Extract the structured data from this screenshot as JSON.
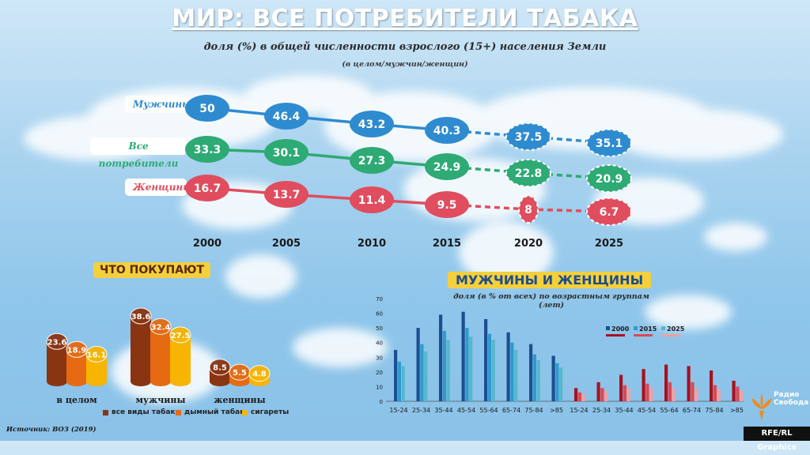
{
  "header": {
    "title": "МИР: ВСЕ ПОТРЕБИТЕЛИ ТАБАКА",
    "subtitle": "доля (%) в общей численности взрослого (15+) населения Земли",
    "note": "(в целом/мужчин/женщин)"
  },
  "colors": {
    "men": "#2e8bd0",
    "all": "#2eaa74",
    "women": "#e04d5e",
    "all_types": "#8a3512",
    "smoked": "#e56a12",
    "cigarettes": "#f7b400",
    "y2000": "#1b4f8f",
    "y2015": "#2e9ad0",
    "y2025": "#58b7c8",
    "w2000": "#a5121f",
    "w2015": "#d84a52",
    "w2025": "#f2a0a4"
  },
  "chart_data": [
    {
      "type": "line",
      "title": "доля (%) в общей численности взрослого (15+) населения Земли",
      "x": [
        "2000",
        "2005",
        "2010",
        "2015",
        "2020",
        "2025"
      ],
      "projected_from_index": 4,
      "series": [
        {
          "name": "Мужчины",
          "values": [
            50,
            46.4,
            43.2,
            40.3,
            37.5,
            35.1
          ],
          "labels": [
            "50",
            "46.4",
            "43.2",
            "40.3",
            "37.5",
            "35.1"
          ]
        },
        {
          "name": "Все потребители",
          "values": [
            33.3,
            30.1,
            27.3,
            24.9,
            22.8,
            20.9
          ],
          "labels": [
            "33.3",
            "30.1",
            "27.3",
            "24.9",
            "22.8",
            "20.9"
          ]
        },
        {
          "name": "Женщины",
          "values": [
            16.7,
            13.7,
            11.4,
            9.5,
            8,
            6.7
          ],
          "labels": [
            "16.7",
            "13.7",
            "11.4",
            "9.5",
            "8",
            "6.7"
          ]
        }
      ]
    },
    {
      "type": "bar",
      "title": "ЧТО ПОКУПАЮТ",
      "categories": [
        "в целом",
        "мужчины",
        "женщины"
      ],
      "series": [
        {
          "name": "все виды табака",
          "values": [
            23.6,
            38.6,
            8.5
          ],
          "labels": [
            "23.6",
            "38.6",
            "8.5"
          ]
        },
        {
          "name": "дымный табак",
          "values": [
            18.9,
            32.4,
            5.5
          ],
          "labels": [
            "18.9",
            "32.4",
            "5.5"
          ]
        },
        {
          "name": "сигареты",
          "values": [
            16.1,
            27.5,
            4.8
          ],
          "labels": [
            "16.1",
            "27.5",
            "4.8"
          ]
        }
      ]
    },
    {
      "type": "bar",
      "title": "МУЖЧИНЫ И ЖЕНЩИНЫ",
      "subtitle": "доля (в % от всех) по возрастным группам (лет)",
      "categories": [
        "15-24",
        "25-34",
        "35-44",
        "45-54",
        "55-64",
        "65-74",
        "75-84",
        ">85"
      ],
      "ylim": [
        0,
        70
      ],
      "yticks": [
        "0",
        "10",
        "20",
        "30",
        "40",
        "50",
        "60",
        "70"
      ],
      "legend": [
        "2000",
        "2015",
        "2025"
      ],
      "men": [
        {
          "name": "2000",
          "values": [
            35,
            50,
            59,
            61,
            56,
            47,
            39,
            31
          ]
        },
        {
          "name": "2015",
          "values": [
            27,
            39,
            48,
            50,
            46,
            40,
            32,
            26
          ]
        },
        {
          "name": "2025",
          "values": [
            24,
            34,
            42,
            44,
            42,
            35,
            28,
            23
          ]
        }
      ],
      "women": [
        {
          "name": "2000",
          "values": [
            9,
            13,
            18,
            22,
            25,
            24,
            21,
            14
          ]
        },
        {
          "name": "2015",
          "values": [
            6,
            9,
            11,
            12,
            13,
            13,
            11,
            10
          ]
        },
        {
          "name": "2025",
          "values": [
            5,
            7,
            9,
            9,
            9,
            9,
            8,
            7
          ]
        }
      ]
    }
  ],
  "source": "Источник: ВОЗ (2019)",
  "credit": "RFE/RL Graphics",
  "logo": {
    "line1": "Радио",
    "line2": "Свобода"
  }
}
